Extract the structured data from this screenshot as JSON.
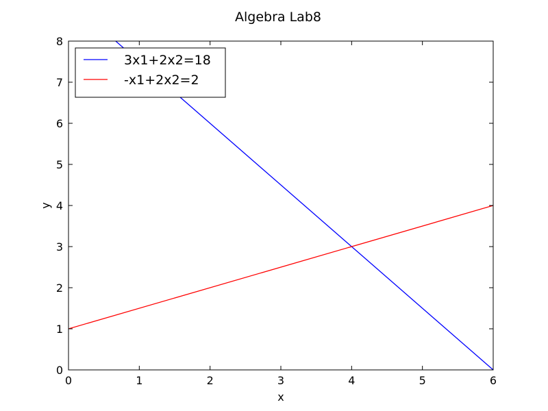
{
  "chart_data": {
    "type": "line",
    "title": "Algebra Lab8",
    "xlabel": "x",
    "ylabel": "y",
    "xlim": [
      0,
      6
    ],
    "ylim": [
      0,
      8
    ],
    "xticks": [
      "0",
      "1",
      "2",
      "3",
      "4",
      "5",
      "6"
    ],
    "yticks": [
      "0",
      "1",
      "2",
      "3",
      "4",
      "5",
      "6",
      "7",
      "8"
    ],
    "grid": false,
    "legend_position": "upper-left",
    "series": [
      {
        "name": "3x1+2x2=18",
        "color": "#0000ff",
        "x": [
          0,
          6
        ],
        "y": [
          9,
          0
        ]
      },
      {
        "name": "-x1+2x2=2",
        "color": "#ff0000",
        "x": [
          0,
          6
        ],
        "y": [
          1,
          4
        ]
      }
    ]
  }
}
